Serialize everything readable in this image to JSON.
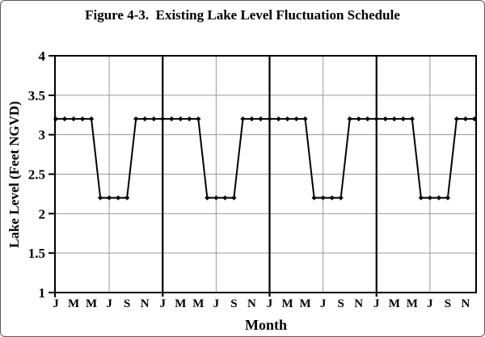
{
  "figure": {
    "title": "Figure 4-3.  Existing Lake Level Fluctuation Schedule"
  },
  "chart_data": {
    "type": "line",
    "title": "Figure 4-3.  Existing Lake Level Fluctuation Schedule",
    "xlabel": "Month",
    "ylabel": "Lake Level (Feet NGVD)",
    "ylim": [
      1,
      4
    ],
    "yticks": [
      1,
      1.5,
      2,
      2.5,
      3,
      3.5,
      4
    ],
    "ytick_labels": [
      "1",
      "1.5",
      "2",
      "2.5",
      "3",
      "3.5",
      "4"
    ],
    "years": 4,
    "months_total": 48,
    "x_tick_labels": [
      "J",
      "M",
      "M",
      "J",
      "S",
      "N",
      "J",
      "M",
      "M",
      "J",
      "S",
      "N",
      "J",
      "M",
      "M",
      "J",
      "S",
      "N",
      "J",
      "M",
      "M",
      "J",
      "S",
      "N"
    ],
    "x_tick_month_indices": [
      0,
      2,
      4,
      6,
      8,
      10,
      12,
      14,
      16,
      18,
      20,
      22,
      24,
      26,
      28,
      30,
      32,
      34,
      36,
      38,
      40,
      42,
      44,
      46
    ],
    "monthly_values": [
      3.2,
      3.2,
      3.2,
      3.2,
      3.2,
      2.2,
      2.2,
      2.2,
      2.2,
      3.2,
      3.2,
      3.2,
      3.2,
      3.2,
      3.2,
      3.2,
      3.2,
      2.2,
      2.2,
      2.2,
      2.2,
      3.2,
      3.2,
      3.2,
      3.2,
      3.2,
      3.2,
      3.2,
      3.2,
      2.2,
      2.2,
      2.2,
      2.2,
      3.2,
      3.2,
      3.2,
      3.2,
      3.2,
      3.2,
      3.2,
      3.2,
      2.2,
      2.2,
      2.2,
      2.2,
      3.2,
      3.2,
      3.2
    ],
    "annual_pattern": {
      "jan_may_level": 3.2,
      "jun_sep_level": 2.2,
      "oct_dec_level": 3.2
    },
    "year_separator_month_indices": [
      12,
      24,
      36
    ],
    "july_gridline_month_indices": [
      6,
      18,
      30,
      42
    ],
    "grid": "on",
    "legend": "none",
    "line_color": "#000000",
    "gridline_color": "#999999",
    "marker": "diamond"
  }
}
